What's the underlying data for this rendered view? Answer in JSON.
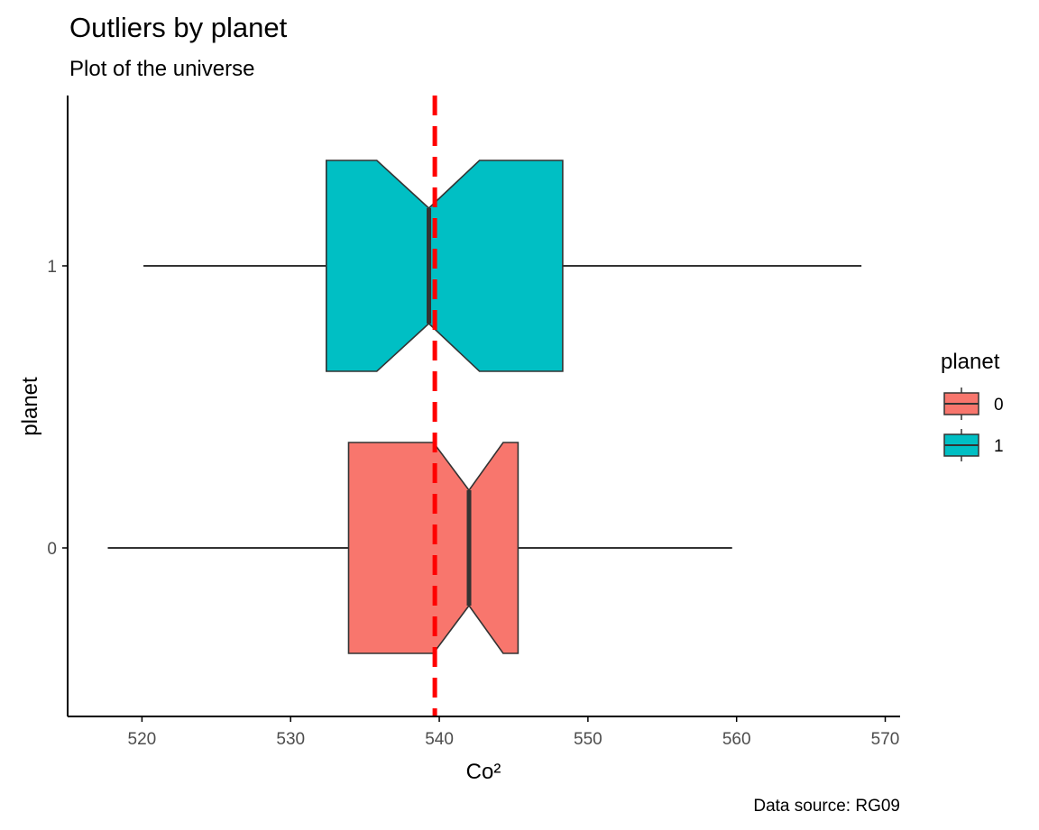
{
  "chart_data": {
    "type": "boxplot",
    "orientation": "horizontal",
    "notched": true,
    "title": "Outliers by planet",
    "subtitle": "Plot of the universe",
    "caption": "Data source: RG09",
    "xlabel": "Co²",
    "ylabel": "planet",
    "xlim": [
      515,
      571
    ],
    "x_ticks": [
      520,
      530,
      540,
      550,
      560,
      570
    ],
    "x_tick_labels": [
      "520",
      "530",
      "540",
      "550",
      "560",
      "570"
    ],
    "y_tick_labels": [
      "0",
      "1"
    ],
    "reference_line": {
      "x": 539.7,
      "color": "#ff0000",
      "style": "dashed"
    },
    "legend": {
      "title": "planet",
      "position": "right",
      "entries": [
        {
          "label": "0",
          "color": "#f8766d"
        },
        {
          "label": "1",
          "color": "#00bfc4"
        }
      ]
    },
    "series": [
      {
        "group": "0",
        "color": "#f8766d",
        "whisker_low": 517.7,
        "q1": 533.9,
        "notch_low": 539.6,
        "median": 542.0,
        "notch_high": 544.3,
        "q3": 545.3,
        "whisker_high": 559.7
      },
      {
        "group": "1",
        "color": "#00bfc4",
        "whisker_low": 520.1,
        "q1": 532.4,
        "notch_low": 535.8,
        "median": 539.3,
        "notch_high": 542.7,
        "q3": 548.3,
        "whisker_high": 568.4
      }
    ],
    "grid": false
  }
}
